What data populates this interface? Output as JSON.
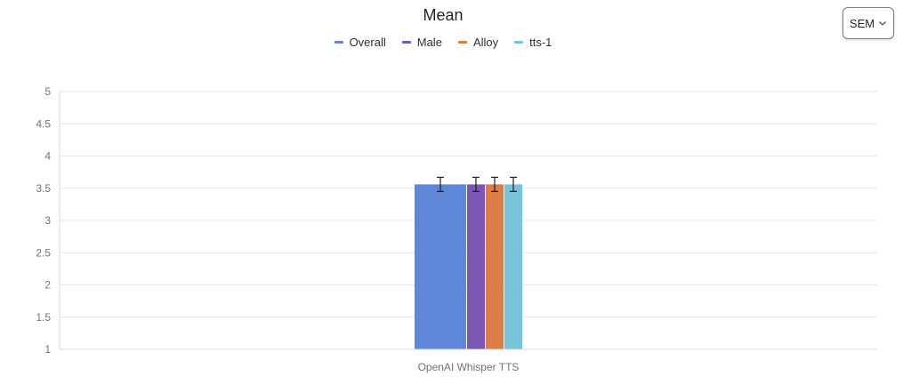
{
  "error_type_select": {
    "value": "SEM",
    "icon": "chevron-down-icon"
  },
  "chart_data": {
    "type": "bar",
    "title": "Mean",
    "xlabel": "",
    "ylabel": "",
    "ylim": [
      1,
      5
    ],
    "yticks": [
      "1",
      "1.5",
      "2",
      "2.5",
      "3",
      "3.5",
      "4",
      "4.5",
      "5"
    ],
    "grid": true,
    "legend_position": "top-center",
    "categories": [
      "OpenAI Whisper TTS"
    ],
    "series": [
      {
        "name": "Overall",
        "color": "#5f87d8",
        "values": [
          3.56
        ],
        "error": [
          0.11
        ]
      },
      {
        "name": "Male",
        "color": "#7b56b4",
        "values": [
          3.56
        ],
        "error": [
          0.11
        ]
      },
      {
        "name": "Alloy",
        "color": "#dc7c48",
        "values": [
          3.56
        ],
        "error": [
          0.11
        ]
      },
      {
        "name": "tts-1",
        "color": "#77c3da",
        "values": [
          3.56
        ],
        "error": [
          0.11
        ]
      }
    ]
  }
}
